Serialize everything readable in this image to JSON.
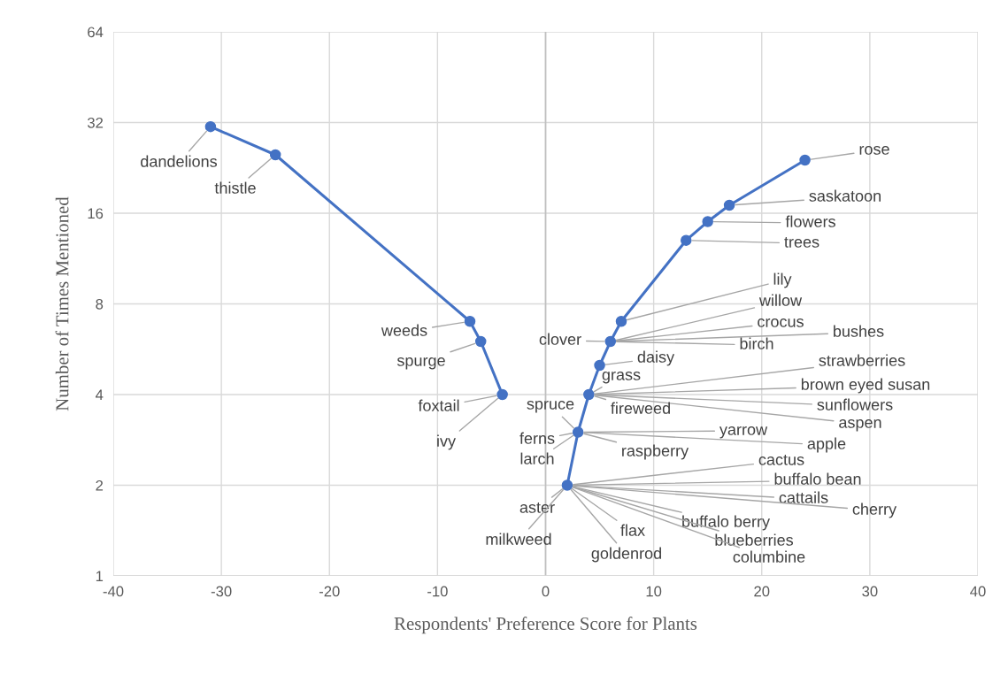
{
  "chart_data": {
    "type": "line",
    "xlabel": "Respondents' Preference Score for Plants",
    "ylabel": "Number of Times Mentioned",
    "series": [
      {
        "color": "#4472c4",
        "x": [
          -31,
          -25,
          -7,
          -6,
          -4
        ],
        "values": [
          31,
          25,
          7,
          6,
          4
        ]
      },
      {
        "color": "#4472c4",
        "x": [
          2,
          3,
          4,
          5,
          6,
          7,
          13,
          15,
          17,
          24
        ],
        "values": [
          2,
          3,
          4,
          5,
          6,
          7,
          13,
          15,
          17,
          24
        ]
      }
    ],
    "marker": "circle",
    "line_style": "solid",
    "log": "y",
    "xlim": [
      -40,
      40
    ],
    "xticks": [
      -40,
      -30,
      -20,
      -10,
      0,
      10,
      20,
      30,
      40
    ],
    "ylim": [
      1,
      64
    ],
    "yticks": [
      1,
      2,
      4,
      8,
      16,
      32,
      64
    ],
    "grid": true,
    "annotations": [
      {
        "text": "dandelions",
        "x": -31,
        "y": 31
      },
      {
        "text": "thistle",
        "x": -25,
        "y": 25
      },
      {
        "text": "weeds",
        "x": -7,
        "y": 7
      },
      {
        "text": "spurge",
        "x": -6,
        "y": 6
      },
      {
        "text": "foxtail",
        "x": -4,
        "y": 4
      },
      {
        "text": "ivy",
        "x": -4,
        "y": 4
      },
      {
        "text": "rose",
        "x": 24,
        "y": 24
      },
      {
        "text": "saskatoon",
        "x": 17,
        "y": 17
      },
      {
        "text": "flowers",
        "x": 15,
        "y": 15
      },
      {
        "text": "trees",
        "x": 13,
        "y": 13
      },
      {
        "text": "lily",
        "x": 7,
        "y": 7
      },
      {
        "text": "willow",
        "x": 6,
        "y": 6
      },
      {
        "text": "crocus",
        "x": 6,
        "y": 6
      },
      {
        "text": "bushes",
        "x": 6,
        "y": 6
      },
      {
        "text": "birch",
        "x": 6,
        "y": 6
      },
      {
        "text": "clover",
        "x": 6,
        "y": 6
      },
      {
        "text": "daisy",
        "x": 5,
        "y": 5
      },
      {
        "text": "grass",
        "x": 4,
        "y": 4
      },
      {
        "text": "strawberries",
        "x": 4,
        "y": 4
      },
      {
        "text": "brown eyed susan",
        "x": 4,
        "y": 4
      },
      {
        "text": "sunflowers",
        "x": 4,
        "y": 4
      },
      {
        "text": "aspen",
        "x": 4,
        "y": 4
      },
      {
        "text": "fireweed",
        "x": 4,
        "y": 4
      },
      {
        "text": "spruce",
        "x": 3,
        "y": 3
      },
      {
        "text": "yarrow",
        "x": 3,
        "y": 3
      },
      {
        "text": "apple",
        "x": 3,
        "y": 3
      },
      {
        "text": "ferns",
        "x": 3,
        "y": 3
      },
      {
        "text": "raspberry",
        "x": 3,
        "y": 3
      },
      {
        "text": "larch",
        "x": 3,
        "y": 3
      },
      {
        "text": "cactus",
        "x": 2,
        "y": 2
      },
      {
        "text": "buffalo bean",
        "x": 2,
        "y": 2
      },
      {
        "text": "cattails",
        "x": 2,
        "y": 2
      },
      {
        "text": "cherry",
        "x": 2,
        "y": 2
      },
      {
        "text": "buffalo berry",
        "x": 2,
        "y": 2
      },
      {
        "text": "aster",
        "x": 2,
        "y": 2
      },
      {
        "text": "flax",
        "x": 2,
        "y": 2
      },
      {
        "text": "blueberries",
        "x": 2,
        "y": 2
      },
      {
        "text": "milkweed",
        "x": 2,
        "y": 2
      },
      {
        "text": "goldenrod",
        "x": 2,
        "y": 2
      },
      {
        "text": "columbine",
        "x": 2,
        "y": 2
      }
    ]
  }
}
